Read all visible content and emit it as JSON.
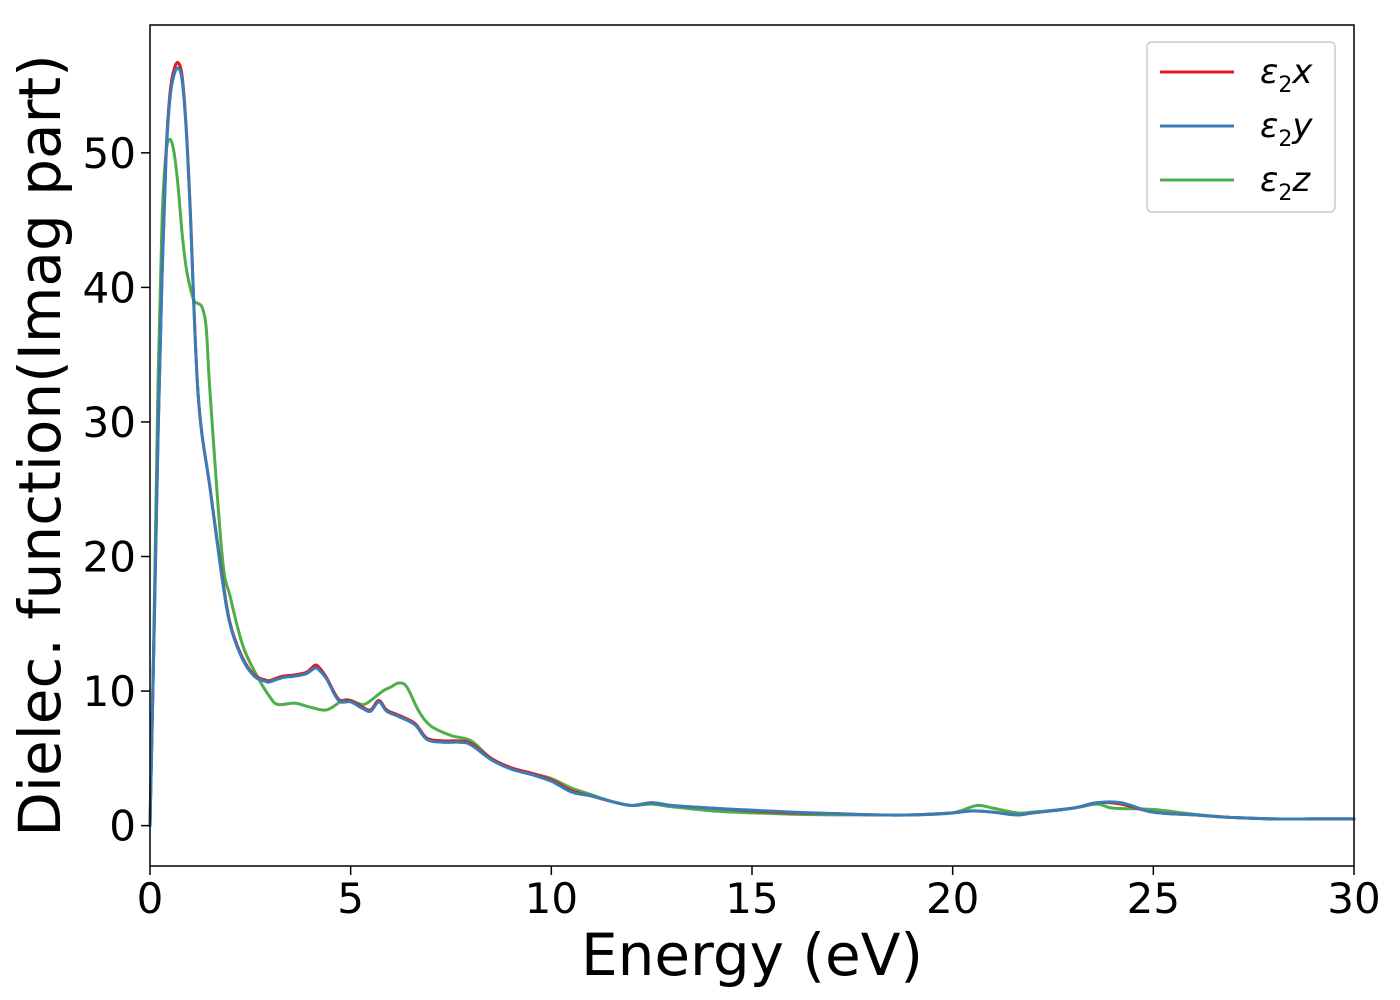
{
  "chart_data": {
    "type": "line",
    "xlabel": "Energy (eV)",
    "ylabel": "Dielec. function(Imag part)",
    "xlim": [
      0,
      30
    ],
    "ylim": [
      -3,
      59.5
    ],
    "xticks": [
      0,
      5,
      10,
      15,
      20,
      25,
      30
    ],
    "yticks": [
      0,
      10,
      20,
      30,
      40,
      50
    ],
    "grid": false,
    "legend_position": "top-right",
    "series": [
      {
        "name": "ε2x",
        "legend_main": "ε",
        "legend_sub": "2",
        "legend_tail": "x",
        "color": "#e41a1c",
        "x": [
          0,
          0.1,
          0.2,
          0.3,
          0.4,
          0.5,
          0.6,
          0.7,
          0.8,
          0.9,
          1.0,
          1.2,
          1.5,
          1.8,
          2.0,
          2.3,
          2.6,
          2.9,
          3.0,
          3.3,
          3.6,
          3.9,
          4.1,
          4.2,
          4.4,
          4.7,
          5.0,
          5.3,
          5.5,
          5.7,
          5.9,
          6.2,
          6.6,
          6.9,
          7.3,
          7.7,
          8.0,
          8.5,
          9.0,
          9.5,
          10.0,
          10.5,
          11.0,
          11.5,
          12.0,
          12.5,
          13.0,
          14.0,
          15.0,
          16.0,
          17.0,
          18.0,
          19.0,
          20.0,
          20.5,
          21.0,
          21.6,
          22.0,
          23.0,
          23.6,
          24.2,
          25.0,
          26.0,
          27.0,
          28.0,
          29.0,
          30.0
        ],
        "values": [
          0,
          14,
          29,
          41,
          50,
          54.5,
          56.2,
          56.7,
          55.7,
          52,
          46,
          32,
          25,
          18.5,
          15,
          12.5,
          11.2,
          10.8,
          10.8,
          11.1,
          11.2,
          11.4,
          11.9,
          11.8,
          11.0,
          9.4,
          9.3,
          8.8,
          8.6,
          9.3,
          8.6,
          8.2,
          7.6,
          6.5,
          6.3,
          6.3,
          6.1,
          5.0,
          4.3,
          3.9,
          3.4,
          2.6,
          2.2,
          1.8,
          1.5,
          1.7,
          1.5,
          1.3,
          1.1,
          0.95,
          0.9,
          0.8,
          0.8,
          0.95,
          1.1,
          1.0,
          0.8,
          0.95,
          1.3,
          1.7,
          1.6,
          1.0,
          0.8,
          0.6,
          0.5,
          0.5,
          0.5
        ]
      },
      {
        "name": "ε2y",
        "legend_main": "ε",
        "legend_sub": "2",
        "legend_tail": "y",
        "color": "#377eb8",
        "x": [
          0,
          0.1,
          0.2,
          0.3,
          0.4,
          0.5,
          0.6,
          0.7,
          0.8,
          0.9,
          1.0,
          1.2,
          1.5,
          1.8,
          2.0,
          2.3,
          2.6,
          2.9,
          3.0,
          3.3,
          3.6,
          3.9,
          4.1,
          4.2,
          4.4,
          4.7,
          5.0,
          5.3,
          5.5,
          5.7,
          5.9,
          6.2,
          6.6,
          6.9,
          7.3,
          7.7,
          8.0,
          8.5,
          9.0,
          9.5,
          10.0,
          10.5,
          11.0,
          11.5,
          12.0,
          12.5,
          13.0,
          14.0,
          15.0,
          16.0,
          17.0,
          18.0,
          19.0,
          20.0,
          20.5,
          21.0,
          21.6,
          22.0,
          23.0,
          23.6,
          24.2,
          25.0,
          26.0,
          27.0,
          28.0,
          29.0,
          30.0
        ],
        "values": [
          0,
          14,
          28.8,
          40.8,
          49.6,
          54.1,
          55.8,
          56.3,
          55.4,
          51.8,
          45.8,
          32,
          25,
          18.3,
          14.9,
          12.4,
          11.1,
          10.7,
          10.7,
          11.0,
          11.1,
          11.3,
          11.7,
          11.6,
          10.9,
          9.3,
          9.2,
          8.7,
          8.5,
          9.2,
          8.5,
          8.1,
          7.5,
          6.4,
          6.2,
          6.2,
          6.0,
          4.9,
          4.2,
          3.8,
          3.3,
          2.5,
          2.2,
          1.8,
          1.5,
          1.7,
          1.5,
          1.3,
          1.15,
          1.0,
          0.9,
          0.8,
          0.8,
          0.95,
          1.1,
          1.0,
          0.8,
          0.95,
          1.3,
          1.7,
          1.7,
          1.0,
          0.8,
          0.6,
          0.5,
          0.5,
          0.5
        ]
      },
      {
        "name": "ε2z",
        "legend_main": "ε",
        "legend_sub": "2",
        "legend_tail": "z",
        "color": "#4daf4a",
        "x": [
          0,
          0.1,
          0.2,
          0.3,
          0.4,
          0.5,
          0.6,
          0.7,
          0.8,
          0.9,
          1.0,
          1.1,
          1.2,
          1.3,
          1.4,
          1.5,
          1.8,
          2.0,
          2.3,
          2.6,
          3.0,
          3.2,
          3.6,
          4.0,
          4.4,
          4.8,
          5.0,
          5.3,
          5.5,
          5.8,
          6.0,
          6.2,
          6.4,
          6.7,
          7.0,
          7.5,
          8.0,
          8.5,
          9.0,
          9.5,
          10.0,
          10.5,
          11.0,
          11.5,
          12.0,
          12.5,
          13.0,
          14.0,
          15.0,
          16.0,
          17.0,
          18.0,
          19.0,
          20.0,
          20.6,
          21.0,
          21.6,
          22.0,
          23.0,
          23.6,
          24.0,
          25.0,
          26.0,
          27.0,
          28.0,
          29.0,
          30.0
        ],
        "values": [
          0,
          15,
          33,
          45,
          50,
          51,
          50,
          47.5,
          44,
          41.5,
          40,
          39,
          38.8,
          38.5,
          37,
          32,
          20,
          17,
          13.5,
          11.5,
          9.5,
          9.0,
          9.1,
          8.8,
          8.6,
          9.3,
          9.3,
          9.0,
          9.3,
          10.0,
          10.3,
          10.6,
          10.3,
          8.5,
          7.4,
          6.7,
          6.3,
          5.0,
          4.3,
          3.9,
          3.5,
          2.8,
          2.3,
          1.8,
          1.5,
          1.6,
          1.4,
          1.1,
          0.95,
          0.85,
          0.8,
          0.8,
          0.8,
          0.95,
          1.5,
          1.3,
          0.95,
          1.0,
          1.3,
          1.6,
          1.3,
          1.2,
          0.85,
          0.6,
          0.5,
          0.5,
          0.5
        ]
      }
    ]
  }
}
